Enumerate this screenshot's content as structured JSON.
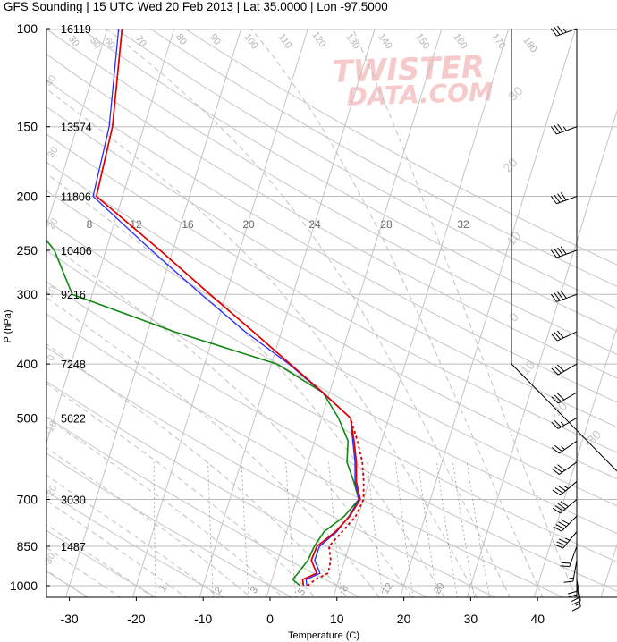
{
  "title": "GFS Sounding | 15 UTC Wed 20 Feb 2013 | Lat 35.0000 | Lon -97.5000",
  "watermark": {
    "line1": "TWISTER",
    "line2": "DATA.COM"
  },
  "colors": {
    "temperature": "#e00000",
    "virtual_temperature": "#2b2bff",
    "dewpoint": "#118811",
    "parcel": "#cc0000",
    "grid": "#b0b0b0"
  },
  "chart_data": {
    "type": "skew-t log-p",
    "xlabel": "Temperature (C)",
    "ylabel": "P (hPa)",
    "x_ticks": [
      -30,
      -20,
      -10,
      0,
      10,
      20,
      30,
      40
    ],
    "pressure_ticks": [
      100,
      150,
      200,
      250,
      300,
      400,
      500,
      700,
      850,
      1000
    ],
    "pressure_range": [
      100,
      1050
    ],
    "heights_m": [
      {
        "p": 100,
        "z": "16119"
      },
      {
        "p": 150,
        "z": "13574"
      },
      {
        "p": 200,
        "z": "11806"
      },
      {
        "p": 250,
        "z": "10406"
      },
      {
        "p": 300,
        "z": "9216"
      },
      {
        "p": 400,
        "z": "7248"
      },
      {
        "p": 500,
        "z": "5622"
      },
      {
        "p": 700,
        "z": "3030"
      },
      {
        "p": 850,
        "z": "1487"
      }
    ],
    "theta_labels": [
      "30",
      "50",
      "60",
      "70",
      "80",
      "90",
      "100",
      "110",
      "120",
      "130",
      "140",
      "150",
      "160",
      "170",
      "180"
    ],
    "mixing_ratio_labels": [
      "1",
      "2",
      "3",
      "5",
      "8",
      "12",
      "16",
      "20",
      "24",
      "28",
      "32"
    ],
    "moist_adiabat_labels": [
      "-30",
      "-20",
      "-10",
      "0",
      "10",
      "20",
      "30",
      "40"
    ],
    "series": [
      {
        "name": "T",
        "points": [
          {
            "p": 1000,
            "t": 5.0
          },
          {
            "p": 975,
            "t": 4.6
          },
          {
            "p": 950,
            "t": 6.4
          },
          {
            "p": 900,
            "t": 5.0
          },
          {
            "p": 850,
            "t": 5.2
          },
          {
            "p": 800,
            "t": 7.3
          },
          {
            "p": 750,
            "t": 8.7
          },
          {
            "p": 700,
            "t": 9.5
          },
          {
            "p": 650,
            "t": 8.1
          },
          {
            "p": 600,
            "t": 7.2
          },
          {
            "p": 550,
            "t": 5.9
          },
          {
            "p": 500,
            "t": 4.3
          },
          {
            "p": 450,
            "t": -1.0
          },
          {
            "p": 400,
            "t": -7.2
          },
          {
            "p": 350,
            "t": -14.2
          },
          {
            "p": 300,
            "t": -22.4
          },
          {
            "p": 250,
            "t": -31.9
          },
          {
            "p": 200,
            "t": -43.9
          },
          {
            "p": 150,
            "t": -44.7
          },
          {
            "p": 100,
            "t": -47.8
          }
        ]
      },
      {
        "name": "Tv",
        "points": [
          {
            "p": 1000,
            "t": 5.5
          },
          {
            "p": 975,
            "t": 5.1
          },
          {
            "p": 950,
            "t": 6.9
          },
          {
            "p": 900,
            "t": 5.5
          },
          {
            "p": 850,
            "t": 5.6
          },
          {
            "p": 800,
            "t": 7.5
          },
          {
            "p": 750,
            "t": 8.6
          },
          {
            "p": 700,
            "t": 9.3
          },
          {
            "p": 650,
            "t": 7.9
          },
          {
            "p": 600,
            "t": 7.0
          },
          {
            "p": 550,
            "t": 5.7
          },
          {
            "p": 500,
            "t": 4.3
          },
          {
            "p": 450,
            "t": -1.1
          },
          {
            "p": 400,
            "t": -7.4
          },
          {
            "p": 350,
            "t": -15.4
          },
          {
            "p": 300,
            "t": -23.7
          },
          {
            "p": 250,
            "t": -33.2
          },
          {
            "p": 200,
            "t": -44.4
          },
          {
            "p": 150,
            "t": -45.2
          },
          {
            "p": 100,
            "t": -48.3
          }
        ]
      },
      {
        "name": "Td",
        "points": [
          {
            "p": 1000,
            "t": 4.5
          },
          {
            "p": 975,
            "t": 3.1
          },
          {
            "p": 950,
            "t": 3.6
          },
          {
            "p": 900,
            "t": 4.5
          },
          {
            "p": 850,
            "t": 4.8
          },
          {
            "p": 800,
            "t": 5.6
          },
          {
            "p": 750,
            "t": 7.9
          },
          {
            "p": 700,
            "t": 9.3
          },
          {
            "p": 650,
            "t": 7.7
          },
          {
            "p": 600,
            "t": 5.8
          },
          {
            "p": 550,
            "t": 5.0
          },
          {
            "p": 500,
            "t": 2.5
          },
          {
            "p": 450,
            "t": -1.0
          },
          {
            "p": 400,
            "t": -9.2
          },
          {
            "p": 350,
            "t": -26.0
          },
          {
            "p": 300,
            "t": -43.0
          },
          {
            "p": 250,
            "t": -47.7
          },
          {
            "p": 200,
            "t": -56.6
          },
          {
            "p": 150,
            "t": -65.6
          },
          {
            "p": 100,
            "t": -74.0
          }
        ]
      },
      {
        "name": "Parcel",
        "points": [
          {
            "p": 1000,
            "t": 5.6
          },
          {
            "p": 975,
            "t": 6.5
          },
          {
            "p": 950,
            "t": 8.1
          },
          {
            "p": 900,
            "t": 7.9
          },
          {
            "p": 850,
            "t": 7.0
          },
          {
            "p": 800,
            "t": 8.3
          },
          {
            "p": 750,
            "t": 9.6
          },
          {
            "p": 700,
            "t": 10.0
          },
          {
            "p": 650,
            "t": 9.2
          },
          {
            "p": 600,
            "t": 8.1
          },
          {
            "p": 550,
            "t": 6.4
          },
          {
            "p": 500,
            "t": 4.3
          }
        ]
      }
    ],
    "winds": [
      {
        "p": 100,
        "dir": 250,
        "kt": 35
      },
      {
        "p": 150,
        "dir": 250,
        "kt": 35
      },
      {
        "p": 200,
        "dir": 250,
        "kt": 40
      },
      {
        "p": 250,
        "dir": 250,
        "kt": 40
      },
      {
        "p": 300,
        "dir": 250,
        "kt": 40
      },
      {
        "p": 350,
        "dir": 245,
        "kt": 30
      },
      {
        "p": 400,
        "dir": 240,
        "kt": 30
      },
      {
        "p": 450,
        "dir": 240,
        "kt": 30
      },
      {
        "p": 500,
        "dir": 240,
        "kt": 25
      },
      {
        "p": 550,
        "dir": 235,
        "kt": 25
      },
      {
        "p": 600,
        "dir": 235,
        "kt": 30
      },
      {
        "p": 650,
        "dir": 230,
        "kt": 35
      },
      {
        "p": 700,
        "dir": 230,
        "kt": 40
      },
      {
        "p": 750,
        "dir": 225,
        "kt": 40
      },
      {
        "p": 800,
        "dir": 220,
        "kt": 35
      },
      {
        "p": 850,
        "dir": 200,
        "kt": 20
      },
      {
        "p": 900,
        "dir": 190,
        "kt": 15
      },
      {
        "p": 950,
        "dir": 180,
        "kt": 20
      },
      {
        "p": 975,
        "dir": 170,
        "kt": 20
      },
      {
        "p": 1000,
        "dir": 170,
        "kt": 15
      }
    ]
  }
}
